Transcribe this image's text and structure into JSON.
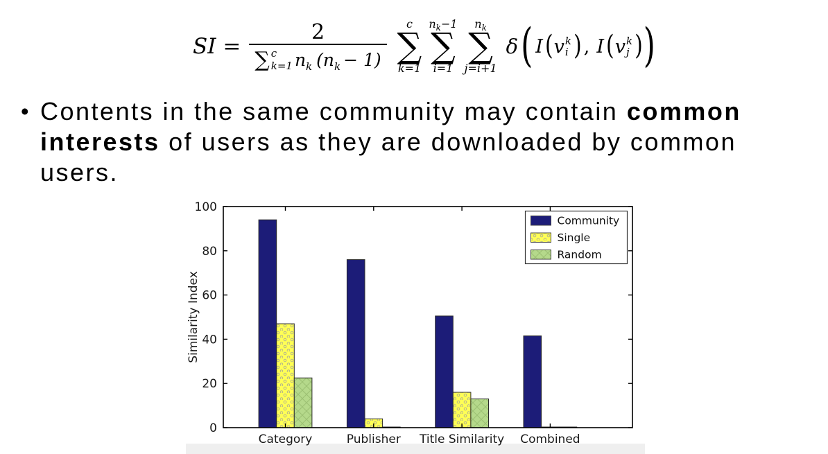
{
  "formula": {
    "lhs": "SI =",
    "numerator": "2",
    "den": {
      "sigma": "∑",
      "sup": "c",
      "sub": "k=1",
      "t1": "n",
      "t1s": "k",
      "t2": "(n",
      "t2s": "k",
      "t3": "− 1)"
    },
    "sums": [
      {
        "top_main": "c",
        "top_sub": "",
        "top_rest": "",
        "sym": "∑",
        "bot": "k=1"
      },
      {
        "top_main": "n",
        "top_sub": "k",
        "top_rest": "−1",
        "sym": "∑",
        "bot": "i=1"
      },
      {
        "top_main": "n",
        "top_sub": "k",
        "top_rest": "",
        "sym": "∑",
        "bot": "j=i+1"
      }
    ],
    "delta": "δ",
    "open_paren": "(",
    "close_paren": ")",
    "arg1": {
      "func": "I",
      "open": "(",
      "v": "v",
      "sup": "k",
      "sub": "i",
      "close": ")"
    },
    "comma": ",",
    "arg2": {
      "func": "I",
      "open": "(",
      "v": "v",
      "sup": "k",
      "sub": "j",
      "close": ")"
    }
  },
  "bullet": {
    "marker": "•",
    "text_before_bold": "Contents in the same community may contain ",
    "bold_text": "common interests",
    "text_after_bold": " of users as they are downloaded by common users."
  },
  "chart_data": {
    "type": "bar",
    "categories": [
      "Category",
      "Publisher",
      "Title Similarity",
      "Combined"
    ],
    "series": [
      {
        "name": "Community",
        "values": [
          94,
          76,
          50.5,
          41.5
        ],
        "color": "#1c1c78",
        "hatch_color": "#1c1c78",
        "pattern": "solid"
      },
      {
        "name": "Single",
        "values": [
          47,
          4,
          16,
          0.3
        ],
        "color": "#ffff55",
        "hatch_color": "#b4b48c",
        "pattern": "dots"
      },
      {
        "name": "Random",
        "values": [
          22.5,
          0.3,
          13,
          0.3
        ],
        "color": "#b5d98b",
        "hatch_color": "#9cc173",
        "pattern": "cross"
      }
    ],
    "title": "",
    "xlabel": "",
    "ylabel": "Similarity Index",
    "ylim": [
      0,
      100
    ],
    "yticks": [
      0,
      20,
      40,
      60,
      80,
      100
    ],
    "legend_position": "upper right",
    "grid": false,
    "axis_color": "#000000",
    "tick_label_color": "#1a1a1a",
    "edge_color": "#2b2b2b"
  }
}
